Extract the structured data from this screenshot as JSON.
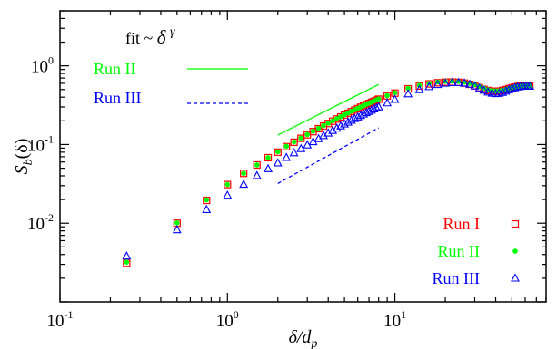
{
  "chart_data": {
    "type": "scatter",
    "xscale": "log",
    "yscale": "log",
    "xlim": [
      0.1,
      80
    ],
    "ylim": [
      0.001,
      5
    ],
    "xlabel": {
      "base": "δ/d",
      "sub": "p"
    },
    "ylabel": {
      "base": "S",
      "sub": "b",
      "arg": "(δ)"
    },
    "x_ticks": [
      {
        "value": 0.1,
        "base": "10",
        "exp": "-1"
      },
      {
        "value": 1,
        "base": "10",
        "exp": "0"
      },
      {
        "value": 10,
        "base": "10",
        "exp": "1"
      }
    ],
    "y_ticks": [
      {
        "value": 0.01,
        "base": "10",
        "exp": "-2"
      },
      {
        "value": 0.1,
        "base": "10",
        "exp": "-1"
      },
      {
        "value": 1,
        "base": "10",
        "exp": "0"
      }
    ],
    "grid": false,
    "annotation": {
      "prefix": "fit ~ ",
      "symbol": "δ",
      "exponent": "γ"
    },
    "series": [
      {
        "name": "Run I",
        "color": "#ff0000",
        "marker": "open-square",
        "points": [
          [
            0.25,
            0.0031
          ],
          [
            0.5,
            0.01
          ],
          [
            0.75,
            0.0195
          ],
          [
            1.0,
            0.031
          ],
          [
            1.25,
            0.043
          ],
          [
            1.5,
            0.055
          ],
          [
            1.75,
            0.068
          ],
          [
            2.0,
            0.08
          ],
          [
            2.25,
            0.094
          ],
          [
            2.5,
            0.107
          ],
          [
            2.75,
            0.12
          ],
          [
            3.0,
            0.133
          ],
          [
            3.25,
            0.146
          ],
          [
            3.5,
            0.159
          ],
          [
            3.75,
            0.172
          ],
          [
            4.0,
            0.185
          ],
          [
            4.25,
            0.198
          ],
          [
            4.5,
            0.211
          ],
          [
            4.75,
            0.224
          ],
          [
            5.0,
            0.237
          ],
          [
            5.25,
            0.25
          ],
          [
            5.5,
            0.262
          ],
          [
            5.75,
            0.274
          ],
          [
            6.0,
            0.286
          ],
          [
            6.25,
            0.298
          ],
          [
            6.5,
            0.31
          ],
          [
            6.75,
            0.322
          ],
          [
            7.0,
            0.333
          ],
          [
            7.25,
            0.344
          ],
          [
            7.5,
            0.355
          ],
          [
            7.75,
            0.366
          ],
          [
            8.0,
            0.377
          ],
          [
            9,
            0.415
          ],
          [
            10,
            0.45
          ],
          [
            12,
            0.51
          ],
          [
            14,
            0.555
          ],
          [
            16,
            0.59
          ],
          [
            18,
            0.61
          ],
          [
            20,
            0.62
          ],
          [
            22,
            0.622
          ],
          [
            24,
            0.617
          ],
          [
            26,
            0.603
          ],
          [
            28,
            0.582
          ],
          [
            30,
            0.556
          ],
          [
            32,
            0.528
          ],
          [
            34,
            0.503
          ],
          [
            36,
            0.485
          ],
          [
            38,
            0.476
          ],
          [
            40,
            0.474
          ],
          [
            42,
            0.477
          ],
          [
            44,
            0.486
          ],
          [
            46,
            0.499
          ],
          [
            48,
            0.513
          ],
          [
            50,
            0.526
          ],
          [
            52,
            0.537
          ],
          [
            54,
            0.546
          ],
          [
            56,
            0.551
          ],
          [
            58,
            0.554
          ],
          [
            60,
            0.556
          ],
          [
            62,
            0.556
          ],
          [
            64,
            0.555
          ]
        ]
      },
      {
        "name": "Run II",
        "color": "#00ff00",
        "marker": "filled-circle",
        "points": [
          [
            0.25,
            0.0032
          ],
          [
            0.5,
            0.0101
          ],
          [
            0.75,
            0.0198
          ],
          [
            1.0,
            0.031
          ],
          [
            1.25,
            0.043
          ],
          [
            1.5,
            0.055
          ],
          [
            1.75,
            0.068
          ],
          [
            2.0,
            0.081
          ],
          [
            2.25,
            0.095
          ],
          [
            2.5,
            0.108
          ],
          [
            2.75,
            0.121
          ],
          [
            3.0,
            0.134
          ],
          [
            3.25,
            0.148
          ],
          [
            3.5,
            0.161
          ],
          [
            3.75,
            0.174
          ],
          [
            4.0,
            0.187
          ],
          [
            4.25,
            0.2
          ],
          [
            4.5,
            0.213
          ],
          [
            4.75,
            0.226
          ],
          [
            5.0,
            0.239
          ],
          [
            5.25,
            0.252
          ],
          [
            5.5,
            0.264
          ],
          [
            5.75,
            0.276
          ],
          [
            6.0,
            0.288
          ],
          [
            6.25,
            0.3
          ],
          [
            6.5,
            0.312
          ],
          [
            6.75,
            0.324
          ],
          [
            7.0,
            0.335
          ],
          [
            7.25,
            0.346
          ],
          [
            7.5,
            0.357
          ],
          [
            7.75,
            0.368
          ],
          [
            8.0,
            0.379
          ],
          [
            9,
            0.418
          ],
          [
            10,
            0.455
          ],
          [
            12,
            0.518
          ],
          [
            14,
            0.565
          ],
          [
            16,
            0.6
          ],
          [
            18,
            0.622
          ],
          [
            20,
            0.633
          ],
          [
            22,
            0.636
          ],
          [
            24,
            0.632
          ],
          [
            26,
            0.62
          ],
          [
            28,
            0.6
          ],
          [
            30,
            0.574
          ],
          [
            32,
            0.545
          ],
          [
            34,
            0.518
          ],
          [
            36,
            0.497
          ],
          [
            38,
            0.485
          ],
          [
            40,
            0.48
          ],
          [
            42,
            0.482
          ],
          [
            44,
            0.49
          ],
          [
            46,
            0.502
          ],
          [
            48,
            0.516
          ],
          [
            50,
            0.529
          ],
          [
            52,
            0.54
          ],
          [
            54,
            0.548
          ],
          [
            56,
            0.553
          ],
          [
            58,
            0.556
          ],
          [
            60,
            0.558
          ],
          [
            62,
            0.558
          ],
          [
            64,
            0.557
          ]
        ]
      },
      {
        "name": "Run III",
        "color": "#0000ff",
        "marker": "open-triangle",
        "points": [
          [
            0.25,
            0.0038
          ],
          [
            0.5,
            0.0082
          ],
          [
            0.75,
            0.0148
          ],
          [
            1.0,
            0.0225
          ],
          [
            1.25,
            0.031
          ],
          [
            1.5,
            0.04
          ],
          [
            1.75,
            0.049
          ],
          [
            2.0,
            0.058
          ],
          [
            2.25,
            0.068
          ],
          [
            2.5,
            0.078
          ],
          [
            2.75,
            0.088
          ],
          [
            3.0,
            0.098
          ],
          [
            3.25,
            0.108
          ],
          [
            3.5,
            0.118
          ],
          [
            3.75,
            0.129
          ],
          [
            4.0,
            0.139
          ],
          [
            4.25,
            0.15
          ],
          [
            4.5,
            0.16
          ],
          [
            4.75,
            0.171
          ],
          [
            5.0,
            0.181
          ],
          [
            5.25,
            0.191
          ],
          [
            5.5,
            0.202
          ],
          [
            5.75,
            0.212
          ],
          [
            6.0,
            0.222
          ],
          [
            6.25,
            0.232
          ],
          [
            6.5,
            0.242
          ],
          [
            6.75,
            0.252
          ],
          [
            7.0,
            0.262
          ],
          [
            7.25,
            0.271
          ],
          [
            7.5,
            0.281
          ],
          [
            7.75,
            0.29
          ],
          [
            8.0,
            0.299
          ],
          [
            9,
            0.336
          ],
          [
            10,
            0.372
          ],
          [
            12,
            0.438
          ],
          [
            14,
            0.495
          ],
          [
            16,
            0.54
          ],
          [
            18,
            0.575
          ],
          [
            20,
            0.597
          ],
          [
            22,
            0.608
          ],
          [
            24,
            0.609
          ],
          [
            26,
            0.6
          ],
          [
            28,
            0.58
          ],
          [
            30,
            0.552
          ],
          [
            32,
            0.519
          ],
          [
            34,
            0.487
          ],
          [
            36,
            0.461
          ],
          [
            38,
            0.446
          ],
          [
            40,
            0.441
          ],
          [
            42,
            0.445
          ],
          [
            44,
            0.457
          ],
          [
            46,
            0.474
          ],
          [
            48,
            0.493
          ],
          [
            50,
            0.51
          ],
          [
            52,
            0.524
          ],
          [
            54,
            0.535
          ],
          [
            56,
            0.542
          ],
          [
            58,
            0.546
          ],
          [
            60,
            0.548
          ],
          [
            62,
            0.548
          ],
          [
            64,
            0.547
          ]
        ]
      }
    ],
    "fit_lines": [
      {
        "name": "Run II",
        "color": "#00ff00",
        "style": "solid",
        "x": [
          2.0,
          8.0
        ],
        "y": [
          0.132,
          0.58
        ]
      },
      {
        "name": "Run III",
        "color": "#0000ff",
        "style": "dashed",
        "x": [
          2.0,
          8.0
        ],
        "y": [
          0.032,
          0.163
        ]
      }
    ],
    "legend_fit": {
      "position": "top-left",
      "entries": [
        "Run II",
        "Run III"
      ]
    },
    "legend_points": {
      "position": "bottom-right",
      "entries": [
        "Run I",
        "Run II",
        "Run III"
      ]
    }
  }
}
